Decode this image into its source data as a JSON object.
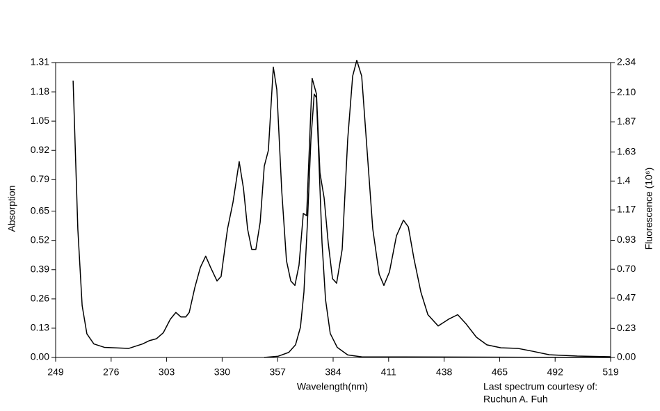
{
  "chart_data": {
    "type": "line",
    "xlabel": "Wavelength(nm)",
    "ylabel": "Absorption",
    "y2label": "Fluorescence (10⁶)",
    "annotations": [
      "Last spectrum courtesy of:",
      "Ruchun A. Fuh"
    ],
    "xlim": [
      249,
      519
    ],
    "xticks": [
      249,
      276,
      303,
      330,
      357,
      384,
      411,
      438,
      465,
      492,
      519
    ],
    "ylim": [
      0,
      1.31
    ],
    "yticks": [
      {
        "value": 0,
        "label": "0.00"
      },
      0.13,
      0.26,
      0.39,
      0.52,
      0.65,
      0.79,
      0.92,
      1.05,
      1.18,
      1.31
    ],
    "y2lim": [
      0,
      2.34
    ],
    "y2ticks": [
      {
        "value": 0,
        "label": "0.00"
      },
      0.23,
      0.47,
      {
        "value": 0.7,
        "label": "0.70"
      },
      0.93,
      1.17,
      1.4,
      1.63,
      1.87,
      {
        "value": 2.1,
        "label": "2.10"
      },
      2.34
    ],
    "series": [
      {
        "color": "#000000",
        "axis": "y",
        "x": [
          257.5,
          259.8,
          261.9,
          264.2,
          267.6,
          272.7,
          284.5,
          291.3,
          294.7,
          298,
          301.4,
          304.8,
          307.5,
          309.9,
          312.3,
          314,
          316.7,
          319.4,
          322,
          324.4,
          327.5,
          329.5,
          332.6,
          335.3,
          338.3,
          340.4,
          342.4,
          344.4,
          346.4,
          348.5,
          350.5,
          352.5,
          354.9,
          356.6,
          359,
          361.3,
          363.4,
          365.4,
          367.4,
          369.5,
          371.1,
          373.8,
          375.9,
          377.6,
          379.6,
          381.6,
          383.7,
          385.7,
          388.4,
          391.1,
          393.5,
          395.5,
          397.9,
          400.6,
          403.3,
          406.4,
          408.7,
          411.4,
          414.8,
          418.2,
          420.6,
          423.3,
          426.7,
          430.1,
          435.1,
          440.2,
          444.6,
          448.6,
          453.7,
          458.8,
          465.6,
          474,
          480.8,
          489.2,
          502.8,
          519
        ],
        "values": [
          1.23,
          0.57,
          0.23,
          0.105,
          0.06,
          0.045,
          0.04,
          0.06,
          0.075,
          0.083,
          0.11,
          0.17,
          0.2,
          0.18,
          0.18,
          0.2,
          0.31,
          0.4,
          0.45,
          0.4,
          0.34,
          0.36,
          0.57,
          0.69,
          0.87,
          0.75,
          0.57,
          0.48,
          0.48,
          0.6,
          0.85,
          0.92,
          1.29,
          1.19,
          0.74,
          0.43,
          0.34,
          0.32,
          0.41,
          0.64,
          0.63,
          1.24,
          1.17,
          0.82,
          0.71,
          0.51,
          0.35,
          0.33,
          0.48,
          0.97,
          1.25,
          1.32,
          1.25,
          0.91,
          0.57,
          0.37,
          0.32,
          0.38,
          0.54,
          0.61,
          0.58,
          0.44,
          0.29,
          0.19,
          0.14,
          0.17,
          0.19,
          0.15,
          0.09,
          0.056,
          0.043,
          0.04,
          0.028,
          0.012,
          0.006,
          0.003
        ]
      },
      {
        "color": "#000000",
        "axis": "y2",
        "x": [
          350.5,
          357.3,
          362.4,
          365.7,
          368.1,
          369.8,
          371.5,
          373.2,
          374.8,
          375.9,
          377.2,
          378.6,
          380.3,
          382.6,
          386,
          391.1,
          397.9,
          519
        ],
        "values": [
          0,
          0.01,
          0.04,
          0.1,
          0.24,
          0.52,
          1.07,
          1.73,
          2.09,
          2.06,
          1.51,
          0.91,
          0.46,
          0.19,
          0.08,
          0.02,
          0.005,
          0
        ]
      }
    ]
  }
}
